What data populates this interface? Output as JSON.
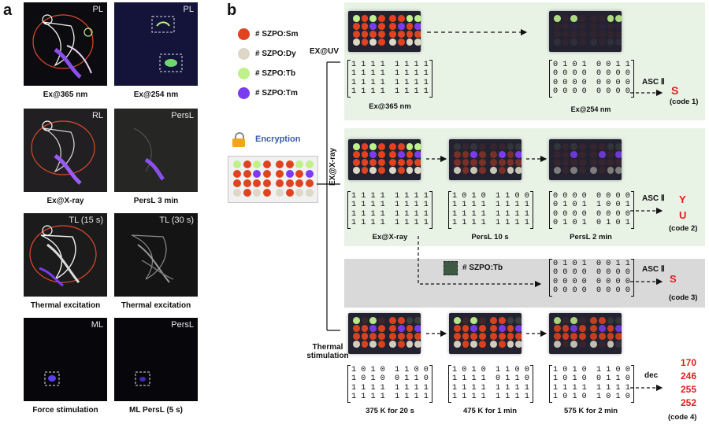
{
  "panel_a": {
    "letter": "a",
    "tiles": [
      {
        "tag": "PL",
        "caption": "Ex@365 nm"
      },
      {
        "tag": "PL",
        "caption": "Ex@254 nm"
      },
      {
        "tag": "RL",
        "caption": "Ex@X-ray"
      },
      {
        "tag": "PersL",
        "caption": "PersL 3 min"
      },
      {
        "tag": "TL (15 s)",
        "caption": "Thermal excitation"
      },
      {
        "tag": "TL  (30 s)",
        "caption": "Thermal excitation"
      },
      {
        "tag": "ML",
        "caption": "Force stimulation"
      },
      {
        "tag": "PersL",
        "caption": "ML PersL (5 s)"
      }
    ]
  },
  "panel_b": {
    "letter": "b",
    "legend": [
      {
        "label": "# SZPO:Sm",
        "color": "#e0431f"
      },
      {
        "label": "# SZPO:Dy",
        "color": "#dcd7c6"
      },
      {
        "label": "# SZPO:Tb",
        "color": "#bff08a"
      },
      {
        "label": "# SZPO:Tm",
        "color": "#7b3cf0"
      }
    ],
    "encryption_label": "Encryption",
    "branch_labels": {
      "uv": "EX@UV",
      "xray": "EX@X-ray",
      "thermal_1": "Thermal",
      "thermal_2": "stimulation"
    },
    "row1": {
      "matrix_365": "1 1 1 1  1 1 1 1\n1 1 1 1  1 1 1 1\n1 1 1 1  1 1 1 1\n1 1 1 1  1 1 1 1",
      "label_365": "Ex@365 nm",
      "matrix_254": "0 1 0 1  0 0 1 1\n0 0 0 0  0 0 0 0\n0 0 0 0  0 0 0 0\n0 0 0 0  0 0 0 0",
      "label_254": "Ex@254 nm",
      "asc": "ASC Ⅱ",
      "result": "S",
      "code": "(code 1)"
    },
    "row2": {
      "matrix_xray": "1 1 1 1  1 1 1 1\n1 1 1 1  1 1 1 1\n1 1 1 1  1 1 1 1\n1 1 1 1  1 1 1 1",
      "label_xray": "Ex@X-ray",
      "matrix_10s": "1 0 1 0  1 1 0 0\n1 1 1 1  1 1 1 1\n1 1 1 1  1 1 1 1\n1 1 1 1  1 1 1 1",
      "label_10s": "PersL 10 s",
      "matrix_2min": "0 0 0 0  0 0 0 0\n0 1 0 1  1 0 0 1\n0 0 0 0  0 0 0 0\n0 1 0 1  0 1 0 1",
      "label_2min": "PersL 2 min",
      "asc": "ASC Ⅱ",
      "result_1": "Y",
      "result_2": "U",
      "code": "(code 2)"
    },
    "row3": {
      "tb_label": "# SZPO:Tb",
      "matrix": "0 1 0 1  0 0 1 1\n0 0 0 0  0 0 0 0\n0 0 0 0  0 0 0 0\n0 0 0 0  0 0 0 0",
      "asc": "ASC Ⅱ",
      "result": "S",
      "code": "(code 3)"
    },
    "row4": {
      "matrix_375": "1 0 1 0  1 1 0 0\n1 0 1 0  0 1 1 0\n1 1 1 1  1 1 1 1\n1 1 1 1  1 1 1 1",
      "label_375": "375 K for 20 s",
      "matrix_475": "1 0 1 0  1 1 0 0\n1 1 1 1  0 1 1 0\n1 1 1 1  1 1 1 1\n1 1 1 1  1 1 1 1",
      "label_475": "475 K for 1 min",
      "matrix_575": "1 0 1 0  1 1 0 0\n1 0 1 0  0 1 1 0\n1 1 1 1  1 1 1 1\n1 0 1 0  1 0 1 0",
      "label_575": "575 K for 2 min",
      "dec": "dec",
      "results": [
        "170",
        "246",
        "255",
        "252"
      ],
      "code": "(code 4)"
    }
  }
}
